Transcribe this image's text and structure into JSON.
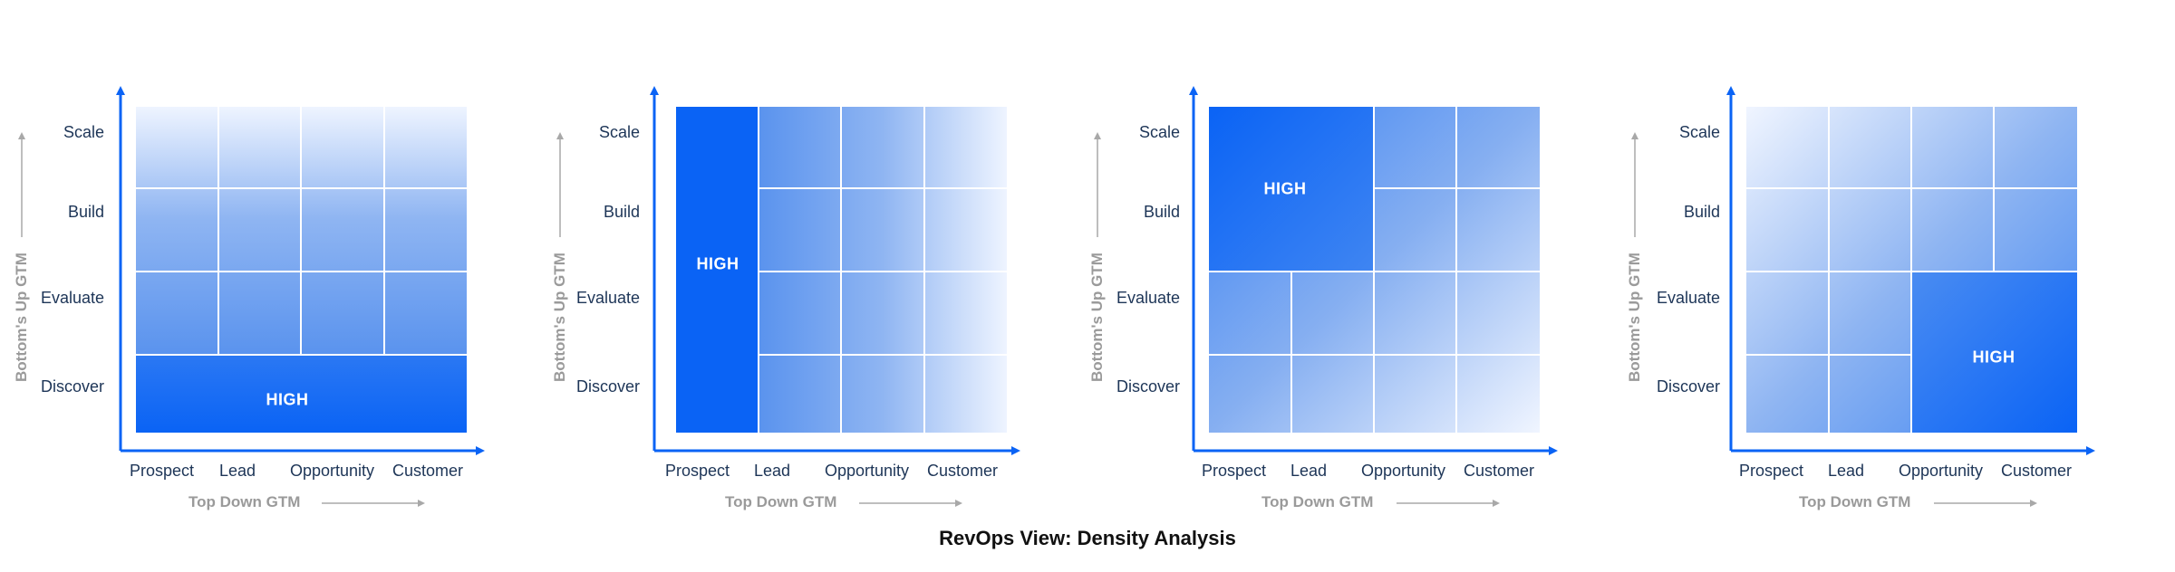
{
  "caption": "RevOps View: Density Analysis",
  "colors": {
    "accent": "#0a63f5",
    "light": "#e8f0ff",
    "axis_title": "#9a9a9a",
    "label": "#1d3557"
  },
  "panels": [
    {
      "y_title": "Bottom's Up GTM",
      "x_title": "Top Down GTM",
      "y_labels": [
        "Scale",
        "Build",
        "Evaluate",
        "Discover"
      ],
      "x_labels": [
        "Prospect",
        "Lead",
        "Opportunity",
        "Customer"
      ],
      "highlight": "HIGH",
      "high_region": "bottom row (Discover)"
    },
    {
      "y_title": "Bottom's Up GTM",
      "x_title": "Top Down GTM",
      "y_labels": [
        "Scale",
        "Build",
        "Evaluate",
        "Discover"
      ],
      "x_labels": [
        "Prospect",
        "Lead",
        "Opportunity",
        "Customer"
      ],
      "highlight": "HIGH",
      "high_region": "left column (Prospect)"
    },
    {
      "y_title": "Bottom's Up GTM",
      "x_title": "Top Down GTM",
      "y_labels": [
        "Scale",
        "Build",
        "Evaluate",
        "Discover"
      ],
      "x_labels": [
        "Prospect",
        "Lead",
        "Opportunity",
        "Customer"
      ],
      "highlight": "HIGH",
      "high_region": "top-left (Prospect-Lead x Scale-Build)"
    },
    {
      "y_title": "Bottom's Up GTM",
      "x_title": "Top Down GTM",
      "y_labels": [
        "Scale",
        "Build",
        "Evaluate",
        "Discover"
      ],
      "x_labels": [
        "Prospect",
        "Lead",
        "Opportunity",
        "Customer"
      ],
      "highlight": "HIGH",
      "high_region": "bottom-right (Opportunity-Customer x Evaluate-Discover)"
    }
  ]
}
